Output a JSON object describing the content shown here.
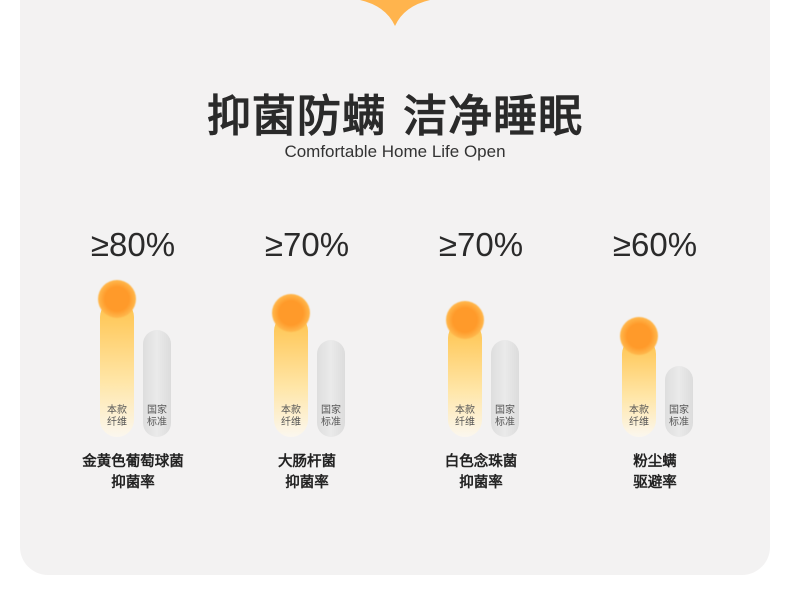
{
  "header": {
    "title": "抑菌防螨 洁净睡眠",
    "subtitle": "Comfortable Home Life Open"
  },
  "colors": {
    "accent": "#ffa733",
    "standard_bar": "#e0e0e0",
    "background": "#f3f2f2"
  },
  "chart_data": {
    "type": "bar",
    "series": [
      {
        "name": "本款纤维"
      },
      {
        "name": "国家标准"
      }
    ],
    "categories": [
      {
        "label_line1": "金黄色葡萄球菌",
        "label_line2": "抑菌率",
        "value_label": "≥80%",
        "value": 80
      },
      {
        "label_line1": "大肠杆菌",
        "label_line2": "抑菌率",
        "value_label": "≥70%",
        "value": 70
      },
      {
        "label_line1": "白色念珠菌",
        "label_line2": "抑菌率",
        "value_label": "≥70%",
        "value": 70
      },
      {
        "label_line1": "粉尘螨",
        "label_line2": "驱避率",
        "value_label": "≥60%",
        "value": 60
      }
    ],
    "bar_labels": {
      "product_line1": "本款",
      "product_line2": "纤维",
      "standard_line1": "国家",
      "standard_line2": "标准"
    }
  }
}
